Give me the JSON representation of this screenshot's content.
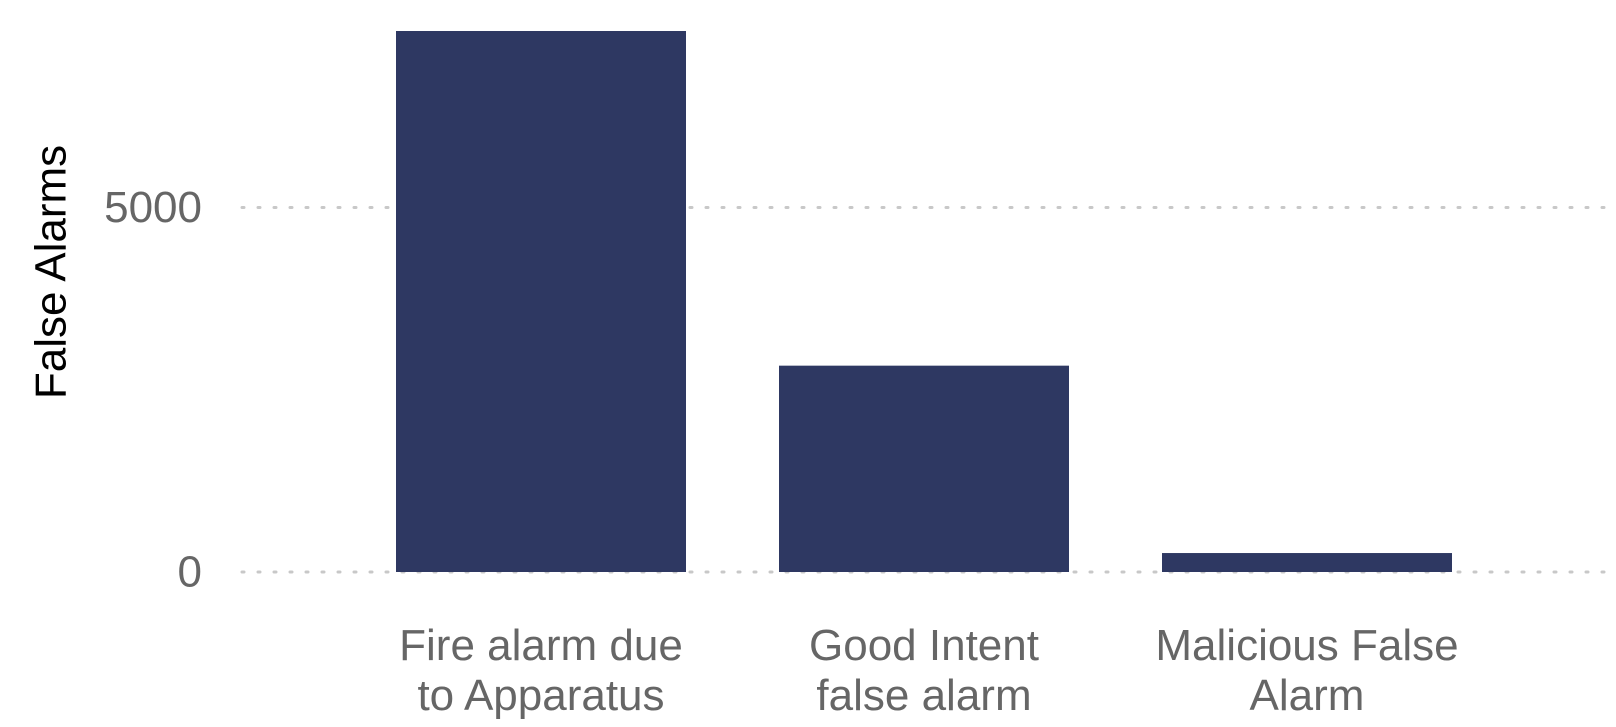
{
  "chart_data": {
    "type": "bar",
    "title": "",
    "xlabel": "",
    "ylabel": "False Alarms",
    "categories": [
      [
        "Fire alarm due",
        "to Apparatus"
      ],
      [
        "Good Intent",
        "false alarm"
      ],
      [
        "Malicious False",
        "Alarm"
      ]
    ],
    "values": [
      7420,
      2830,
      260
    ],
    "ylim": [
      0,
      7420
    ],
    "yticks": [
      0,
      5000
    ],
    "ytick_labels": [
      "0",
      "5000"
    ],
    "grid": "horizontal-dotted",
    "legend": "none",
    "colors": {
      "bar": "#2e3862",
      "grid": "#c8c8c8",
      "tick_text": "#666666",
      "axis_title": "#000000"
    }
  }
}
